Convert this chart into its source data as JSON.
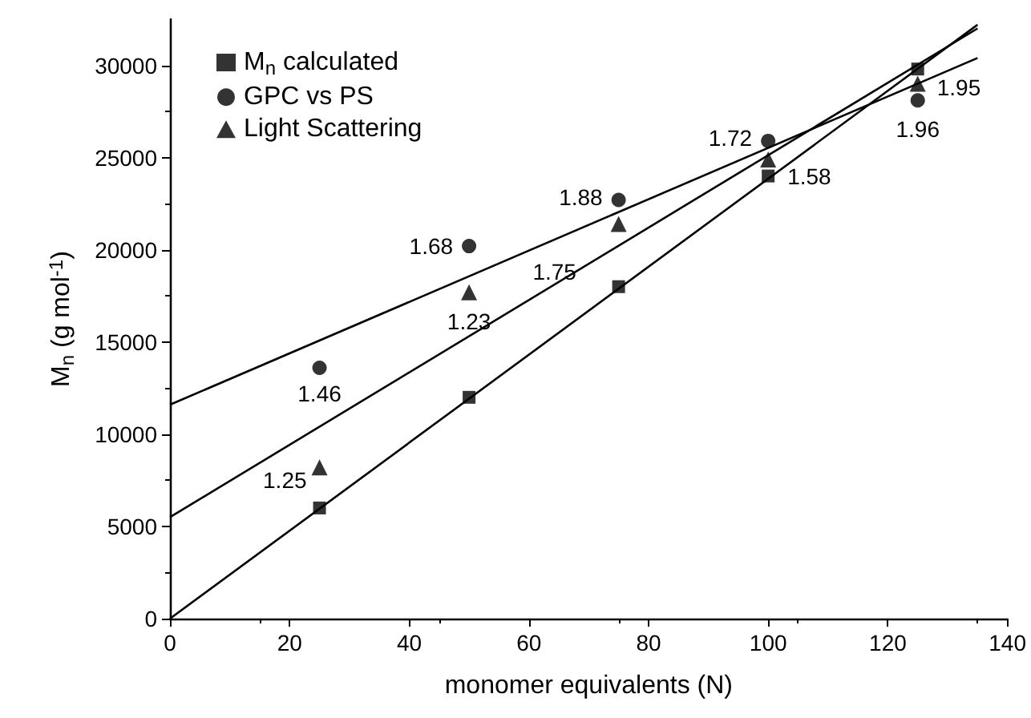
{
  "chart_data": {
    "type": "scatter",
    "xlabel": "monomer equivalents (N)",
    "ylabel": "M$_{n}$ (g mol$^{-1}$)",
    "xlim": [
      0,
      140
    ],
    "xticks": [
      0,
      20,
      40,
      60,
      80,
      100,
      120,
      140
    ],
    "ylim": [
      0,
      32500
    ],
    "yticks": [
      0,
      5000,
      10000,
      15000,
      20000,
      25000,
      30000
    ],
    "grid": false,
    "legend": "top left",
    "series": [
      {
        "name": "M$_{n}$ calculated",
        "marker": "square",
        "color": "#000000",
        "x": [
          25,
          50,
          75,
          100,
          125
        ],
        "values": [
          6000,
          12000,
          18000,
          24000,
          29800
        ]
      },
      {
        "name": "GPC vs PS",
        "marker": "circle",
        "color": "#000000",
        "x": [
          25,
          50,
          75,
          100,
          125
        ],
        "values": [
          13600,
          20200,
          22700,
          25900,
          28100
        ]
      },
      {
        "name": "Light Scattering",
        "marker": "triangle",
        "color": "#000000",
        "x": [
          25,
          50,
          75,
          100,
          125
        ],
        "values": [
          8200,
          17700,
          21400,
          24900,
          29000
        ]
      },
      {
        "type": "line",
        "marker": "none",
        "color": "#000000",
        "x": [
          0,
          135
        ],
        "values": [
          0,
          32200
        ]
      },
      {
        "type": "line",
        "marker": "none",
        "color": "#000000",
        "x": [
          0,
          135
        ],
        "values": [
          11600,
          30400
        ]
      },
      {
        "type": "line",
        "marker": "none",
        "color": "#000000",
        "x": [
          0,
          135
        ],
        "values": [
          5500,
          32000
        ]
      }
    ],
    "annotations": [
      {
        "text": "1.58",
        "x": 100,
        "y": 24000
      },
      {
        "text": "1.46",
        "x": 25,
        "y": 13600
      },
      {
        "text": "1.68",
        "x": 50,
        "y": 20200
      },
      {
        "text": "1.88",
        "x": 75,
        "y": 22700
      },
      {
        "text": "1.72",
        "x": 100,
        "y": 25900
      },
      {
        "text": "1.96",
        "x": 125,
        "y": 28100
      },
      {
        "text": "1.25",
        "x": 25,
        "y": 8200
      },
      {
        "text": "1.23",
        "x": 50,
        "y": 17700
      },
      {
        "text": "1.75",
        "x": 75,
        "y": 21400
      },
      {
        "text": "1.95",
        "x": 125,
        "y": 29000
      }
    ]
  }
}
